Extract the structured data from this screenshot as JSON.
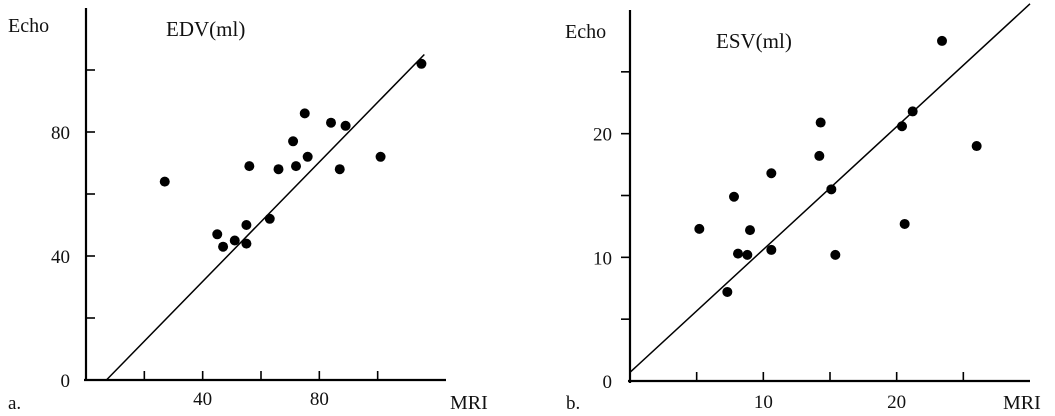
{
  "chart_data": [
    {
      "type": "scatter",
      "panel_label": "a.",
      "title": "EDV(ml)",
      "ylabel": "Echo",
      "xlabel": "MRI",
      "xlim": [
        0,
        120
      ],
      "ylim": [
        0,
        120
      ],
      "x_ticks": [
        20,
        40,
        60,
        80,
        100
      ],
      "x_tick_labels": [
        "40",
        "80"
      ],
      "x_tick_label_values": [
        40,
        80
      ],
      "y_ticks": [
        20,
        40,
        60,
        80,
        100
      ],
      "y_tick_labels": [
        "0",
        "40",
        "80"
      ],
      "y_tick_label_values": [
        0,
        40,
        80
      ],
      "fit_line": {
        "x": [
          7,
          116
        ],
        "y": [
          0,
          105
        ]
      },
      "points": [
        {
          "x": 27,
          "y": 64
        },
        {
          "x": 45,
          "y": 47
        },
        {
          "x": 47,
          "y": 43
        },
        {
          "x": 51,
          "y": 45
        },
        {
          "x": 55,
          "y": 50
        },
        {
          "x": 55,
          "y": 44
        },
        {
          "x": 56,
          "y": 69
        },
        {
          "x": 63,
          "y": 52
        },
        {
          "x": 66,
          "y": 68
        },
        {
          "x": 71,
          "y": 77
        },
        {
          "x": 72,
          "y": 69
        },
        {
          "x": 75,
          "y": 86
        },
        {
          "x": 76,
          "y": 72
        },
        {
          "x": 84,
          "y": 83
        },
        {
          "x": 87,
          "y": 68
        },
        {
          "x": 89,
          "y": 82
        },
        {
          "x": 101,
          "y": 72
        },
        {
          "x": 115,
          "y": 102
        }
      ]
    },
    {
      "type": "scatter",
      "panel_label": "b.",
      "title": "ESV(ml)",
      "ylabel": "Echo",
      "xlabel": "MRI",
      "xlim": [
        0,
        30
      ],
      "ylim": [
        0,
        30
      ],
      "x_ticks": [
        5,
        10,
        15,
        20,
        25
      ],
      "x_tick_labels": [
        "10",
        "20"
      ],
      "x_tick_label_values": [
        10,
        20
      ],
      "y_ticks": [
        5,
        10,
        15,
        20,
        25
      ],
      "y_tick_labels": [
        "0",
        "10",
        "20"
      ],
      "y_tick_label_values": [
        0,
        10,
        20
      ],
      "fit_line": {
        "x": [
          0,
          30
        ],
        "y": [
          0.7,
          30.5
        ]
      },
      "points": [
        {
          "x": 5.2,
          "y": 12.3
        },
        {
          "x": 7.3,
          "y": 7.2
        },
        {
          "x": 7.8,
          "y": 14.9
        },
        {
          "x": 8.1,
          "y": 10.3
        },
        {
          "x": 8.8,
          "y": 10.2
        },
        {
          "x": 9.0,
          "y": 12.2
        },
        {
          "x": 10.6,
          "y": 16.8
        },
        {
          "x": 10.6,
          "y": 10.6
        },
        {
          "x": 14.2,
          "y": 18.2
        },
        {
          "x": 14.3,
          "y": 20.9
        },
        {
          "x": 15.1,
          "y": 15.5
        },
        {
          "x": 15.4,
          "y": 10.2
        },
        {
          "x": 20.4,
          "y": 20.6
        },
        {
          "x": 20.6,
          "y": 12.7
        },
        {
          "x": 21.2,
          "y": 21.8
        },
        {
          "x": 23.4,
          "y": 27.5
        },
        {
          "x": 26.0,
          "y": 19.0
        }
      ]
    }
  ]
}
